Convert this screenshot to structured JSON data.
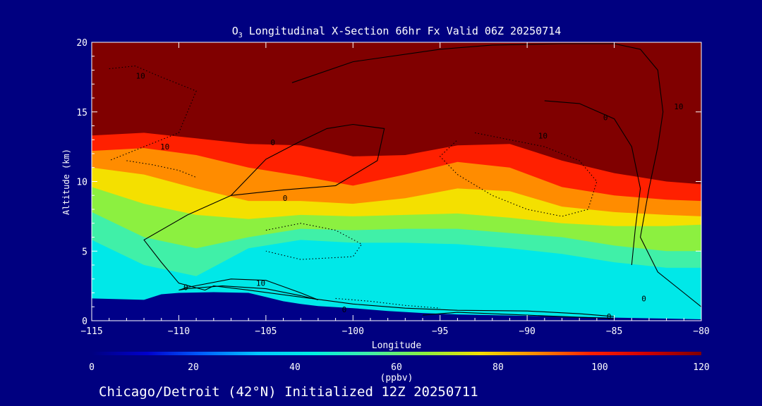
{
  "chart_data": {
    "type": "heatmap",
    "title_species": "O",
    "title_sub": "3",
    "title_rest": " Longitudinal X-Section 66hr  Fx Valid 06Z 20250714",
    "xlabel": "Longitude",
    "ylabel": "Altitude (km)",
    "xlim": [
      -115,
      -80
    ],
    "ylim": [
      0,
      20
    ],
    "xticks": [
      -115,
      -110,
      -105,
      -100,
      -95,
      -90,
      -85,
      -80
    ],
    "xtick_labels": [
      "−115",
      "−110",
      "−105",
      "−100",
      "−95",
      "−90",
      "−85",
      "−80"
    ],
    "yticks": [
      0,
      5,
      10,
      15,
      20
    ],
    "colorbar": {
      "min": 0,
      "max": 120,
      "ticks": [
        0,
        20,
        40,
        60,
        80,
        100,
        120
      ],
      "label": "(ppbv)"
    },
    "fill_bands": [
      {
        "name": "stratosphere",
        "color": "#800000",
        "x": [
          -115,
          -112,
          -109,
          -106,
          -103,
          -100,
          -97,
          -94,
          -91,
          -88,
          -85,
          -82,
          -80
        ],
        "y": [
          13.3,
          13.5,
          13.1,
          12.7,
          12.6,
          11.8,
          11.9,
          12.6,
          12.7,
          11.5,
          10.6,
          10.0,
          9.8
        ]
      },
      {
        "name": "red-band",
        "color": "#ff2000",
        "x": [
          -115,
          -112,
          -109,
          -106,
          -103,
          -100,
          -97,
          -94,
          -91,
          -88,
          -85,
          -82,
          -80
        ],
        "y": [
          12.2,
          12.4,
          11.9,
          11.0,
          10.4,
          9.7,
          10.5,
          11.4,
          11.0,
          9.6,
          9.0,
          8.7,
          8.6
        ]
      },
      {
        "name": "orange-band",
        "color": "#ff8c00",
        "x": [
          -115,
          -112,
          -109,
          -106,
          -103,
          -100,
          -97,
          -94,
          -91,
          -88,
          -85,
          -82,
          -80
        ],
        "y": [
          11.0,
          10.5,
          9.5,
          8.6,
          8.6,
          8.4,
          8.8,
          9.5,
          9.3,
          8.2,
          7.8,
          7.6,
          7.5
        ]
      },
      {
        "name": "yellow-band",
        "color": "#f4e000",
        "x": [
          -115,
          -112,
          -109,
          -106,
          -103,
          -100,
          -97,
          -94,
          -91,
          -88,
          -85,
          -82,
          -80
        ],
        "y": [
          9.6,
          8.4,
          7.6,
          7.3,
          7.6,
          7.5,
          7.6,
          7.7,
          7.4,
          7.0,
          6.8,
          6.8,
          6.9
        ]
      },
      {
        "name": "green-band",
        "color": "#8cf040",
        "x": [
          -115,
          -112,
          -109,
          -106,
          -103,
          -100,
          -97,
          -94,
          -91,
          -88,
          -85,
          -82,
          -80
        ],
        "y": [
          7.8,
          6.0,
          5.2,
          6.0,
          6.6,
          6.5,
          6.6,
          6.6,
          6.3,
          6.0,
          5.4,
          5.0,
          5.0
        ]
      },
      {
        "name": "aqua-band",
        "color": "#40f0a8",
        "x": [
          -115,
          -112,
          -109,
          -106,
          -103,
          -100,
          -97,
          -94,
          -91,
          -88,
          -85,
          -82,
          -80
        ],
        "y": [
          5.8,
          4.0,
          3.2,
          5.2,
          5.8,
          5.6,
          5.6,
          5.5,
          5.2,
          4.8,
          4.2,
          3.8,
          3.8
        ]
      },
      {
        "name": "cyan-band",
        "color": "#00e8e8",
        "x": [
          -115,
          -112,
          -109,
          -106,
          -103,
          -100,
          -97,
          -94,
          -91,
          -88,
          -85,
          -82,
          -80
        ],
        "y": [
          3.2,
          2.2,
          2.3,
          3.8,
          4.6,
          4.6,
          4.4,
          4.2,
          4.0,
          3.6,
          3.0,
          2.6,
          2.6
        ]
      }
    ],
    "terrain": {
      "color": "#000088",
      "x": [
        -115,
        -112,
        -111,
        -110,
        -108,
        -106,
        -105,
        -104,
        -103,
        -102,
        -100,
        -98,
        -96,
        -94,
        -92,
        -90,
        -88,
        -86,
        -84,
        -82,
        -80
      ],
      "y": [
        1.6,
        1.5,
        1.9,
        2.0,
        2.05,
        2.0,
        1.7,
        1.4,
        1.2,
        1.05,
        0.9,
        0.7,
        0.55,
        0.45,
        0.4,
        0.35,
        0.3,
        0.25,
        0.2,
        0.15,
        0.1
      ]
    },
    "contours": [
      {
        "style": "solid",
        "label": "0",
        "x": [
          -107,
          -105,
          -103,
          -101.5,
          -100,
          -98.2,
          -98.6,
          -101,
          -104,
          -107,
          -109.5,
          -112,
          -111,
          -110,
          -108.5
        ],
        "y": [
          9.0,
          11.6,
          12.9,
          13.8,
          14.1,
          13.8,
          11.5,
          9.7,
          9.4,
          9.0,
          7.6,
          5.8,
          4.2,
          2.7,
          2.2
        ]
      },
      {
        "style": "solid",
        "label": "0",
        "x": [
          -108.5,
          -108,
          -106,
          -103,
          -100,
          -97,
          -94,
          -90,
          -87,
          -85
        ],
        "y": [
          2.2,
          2.5,
          2.2,
          1.7,
          1.2,
          0.9,
          0.75,
          0.7,
          0.5,
          0.3
        ]
      },
      {
        "style": "solid",
        "label": "10",
        "x": [
          -110,
          -109.5,
          -107,
          -105,
          -103,
          -102,
          -103,
          -105,
          -107.5,
          -109.5,
          -110
        ],
        "y": [
          2.2,
          2.4,
          3.0,
          2.9,
          2.0,
          1.5,
          1.8,
          2.3,
          2.5,
          2.3,
          2.2
        ]
      },
      {
        "style": "solid",
        "label": "0",
        "x": [
          -96,
          -94,
          -92,
          -90,
          -88,
          -86,
          -85
        ],
        "y": [
          0.4,
          0.6,
          0.5,
          0.4,
          0.3,
          0.2,
          0.15
        ]
      },
      {
        "style": "solid",
        "label": "0",
        "x": [
          -103.5,
          -100,
          -95,
          -92,
          -88,
          -85,
          -83.5,
          -82.5,
          -82.2,
          -82.5,
          -83,
          -83.5,
          -82.5,
          -81,
          -80
        ],
        "y": [
          17.1,
          18.6,
          19.5,
          19.8,
          19.9,
          19.9,
          19.5,
          18.0,
          15.0,
          12.5,
          9.5,
          6.0,
          3.5,
          2.0,
          1.0
        ]
      },
      {
        "style": "solid",
        "label": "0",
        "x": [
          -89,
          -87,
          -85,
          -84,
          -83.5,
          -83.8,
          -84
        ],
        "y": [
          15.8,
          15.6,
          14.5,
          12.5,
          9.5,
          6.5,
          4.0
        ]
      },
      {
        "style": "dotted",
        "label": "10",
        "x": [
          -114,
          -112.5,
          -111,
          -109,
          -110,
          -112,
          -114
        ],
        "y": [
          18.1,
          18.3,
          17.5,
          16.5,
          13.5,
          12.5,
          11.5
        ]
      },
      {
        "style": "dotted",
        "label": "10",
        "x": [
          -113,
          -111.5,
          -110,
          -109
        ],
        "y": [
          11.5,
          11.2,
          10.8,
          10.3
        ]
      },
      {
        "style": "dotted",
        "label": "10",
        "x": [
          -105,
          -103,
          -101,
          -99.5,
          -100,
          -103,
          -105
        ],
        "y": [
          6.5,
          7.0,
          6.5,
          5.5,
          4.6,
          4.4,
          5.0
        ]
      },
      {
        "style": "dotted",
        "label": "10",
        "x": [
          -93,
          -91,
          -89,
          -87,
          -86,
          -86.5,
          -88,
          -90,
          -92,
          -94,
          -95,
          -94
        ],
        "y": [
          13.5,
          13.0,
          12.5,
          11.5,
          10.0,
          8.0,
          7.5,
          8.0,
          9.0,
          10.5,
          11.8,
          13.0
        ]
      },
      {
        "style": "dotted",
        "label": "10",
        "x": [
          -101,
          -99,
          -97,
          -95
        ],
        "y": [
          1.6,
          1.4,
          1.1,
          0.9
        ]
      }
    ],
    "contour_labels": [
      {
        "text": "10",
        "x": -112.2,
        "y": 17.6
      },
      {
        "text": "10",
        "x": -110.8,
        "y": 12.5
      },
      {
        "text": "0",
        "x": -104.6,
        "y": 12.8
      },
      {
        "text": "0",
        "x": -103.9,
        "y": 8.8
      },
      {
        "text": "10",
        "x": -105.3,
        "y": 2.7
      },
      {
        "text": "0",
        "x": -109.6,
        "y": 2.4
      },
      {
        "text": "0",
        "x": -100.5,
        "y": 0.8
      },
      {
        "text": "10",
        "x": -89.1,
        "y": 13.3
      },
      {
        "text": "0",
        "x": -85.5,
        "y": 14.6
      },
      {
        "text": "10",
        "x": -81.3,
        "y": 15.4
      },
      {
        "text": "0",
        "x": -85.3,
        "y": 0.3
      },
      {
        "text": "0",
        "x": -83.3,
        "y": 1.6
      }
    ]
  },
  "footer_text": "Chicago/Detroit (42°N) Initialized 12Z 20250711",
  "colors": {
    "background": "#000080",
    "axes": "#ffffff",
    "colorbar": [
      "#000080",
      "#0000cd",
      "#0060ff",
      "#00c8ff",
      "#00f0e0",
      "#40f0a8",
      "#8cf040",
      "#f4e000",
      "#ff8c00",
      "#ff2000",
      "#d00000",
      "#800000"
    ]
  }
}
